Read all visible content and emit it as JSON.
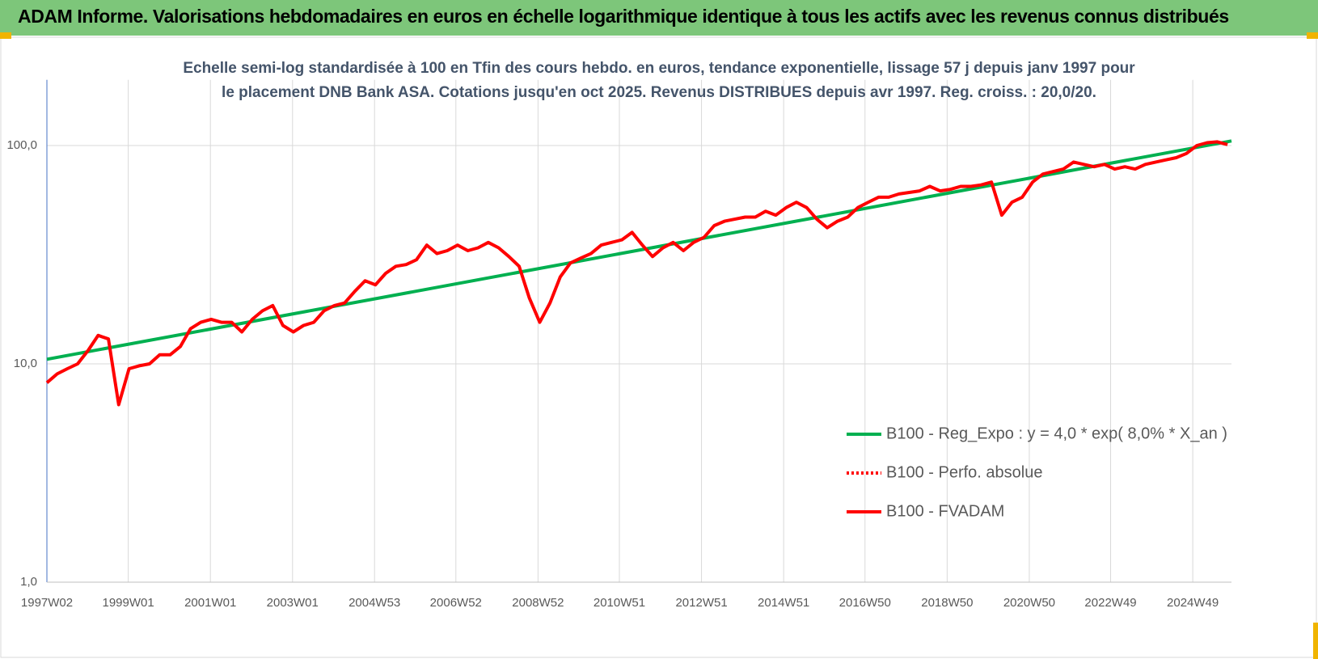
{
  "chart_data": {
    "type": "line",
    "title": "ADAM Informe. Valorisations hebdomadaires en euros en échelle logarithmique identique à tous les actifs avec les revenus connus distribués",
    "subtitle": "Echelle semi-log standardisée à 100 en Tfin des cours hebdo. en euros, tendance exponentielle, lissage 57 j depuis janv 1997 pour le placement DNB Bank ASA. Cotations jusqu'en oct 2025. Revenus DISTRIBUES depuis avr 1997. Reg. croiss. : 20,0/20.",
    "ylog": true,
    "ylim": [
      1,
      200
    ],
    "yticks": [
      {
        "value": 1,
        "label": "1,0"
      },
      {
        "value": 10,
        "label": "10,0"
      },
      {
        "value": 100,
        "label": "100,0"
      }
    ],
    "xlim": [
      "1997W02",
      "2025W46"
    ],
    "xticks": [
      "1997W02",
      "1999W01",
      "2001W01",
      "2003W01",
      "2004W53",
      "2006W52",
      "2008W52",
      "2010W51",
      "2012W51",
      "2014W51",
      "2016W50",
      "2018W50",
      "2020W50",
      "2022W49",
      "2024W49"
    ],
    "grid": true,
    "legend": "lower right",
    "series": [
      {
        "name": "B100 - Reg_Expo : y = 4,0 * exp( 8,0% *  X_an )",
        "color": "#00b050",
        "dash": "solid",
        "x": [
          "1997W02",
          "2025W46"
        ],
        "values": [
          10.5,
          105
        ]
      },
      {
        "name": "B100 - Perfo. absolue",
        "color": "#ff0000",
        "dash": "dotted"
      },
      {
        "name": "B100 - FVADAM",
        "color": "#ff0000",
        "dash": "solid",
        "x": [
          "1997W02",
          "1997W15",
          "1997W28",
          "1997W41",
          "1998W02",
          "1998W15",
          "1998W28",
          "1998W41",
          "1999W02",
          "1999W15",
          "1999W28",
          "1999W41",
          "2000W02",
          "2000W15",
          "2000W28",
          "2000W41",
          "2001W02",
          "2001W15",
          "2001W28",
          "2001W41",
          "2002W02",
          "2002W15",
          "2002W28",
          "2002W41",
          "2003W02",
          "2003W15",
          "2003W28",
          "2003W41",
          "2004W02",
          "2004W15",
          "2004W28",
          "2004W41",
          "2005W02",
          "2005W15",
          "2005W28",
          "2005W41",
          "2006W02",
          "2006W15",
          "2006W28",
          "2006W41",
          "2007W02",
          "2007W15",
          "2007W28",
          "2007W41",
          "2008W02",
          "2008W15",
          "2008W28",
          "2008W41",
          "2009W02",
          "2009W15",
          "2009W28",
          "2009W41",
          "2010W02",
          "2010W15",
          "2010W28",
          "2010W41",
          "2011W02",
          "2011W15",
          "2011W28",
          "2011W41",
          "2012W02",
          "2012W15",
          "2012W28",
          "2012W41",
          "2013W02",
          "2013W15",
          "2013W28",
          "2013W41",
          "2014W02",
          "2014W15",
          "2014W28",
          "2014W41",
          "2015W02",
          "2015W15",
          "2015W28",
          "2015W41",
          "2016W02",
          "2016W15",
          "2016W28",
          "2016W41",
          "2017W02",
          "2017W15",
          "2017W28",
          "2017W41",
          "2018W02",
          "2018W15",
          "2018W28",
          "2018W41",
          "2019W02",
          "2019W15",
          "2019W28",
          "2019W41",
          "2020W02",
          "2020W15",
          "2020W28",
          "2020W41",
          "2021W02",
          "2021W15",
          "2021W28",
          "2021W41",
          "2022W02",
          "2022W15",
          "2022W28",
          "2022W41",
          "2023W02",
          "2023W15",
          "2023W28",
          "2023W41",
          "2024W02",
          "2024W15",
          "2024W28",
          "2024W41",
          "2025W02",
          "2025W15",
          "2025W28",
          "2025W41"
        ],
        "values": [
          8.2,
          9.0,
          9.5,
          10.0,
          11.5,
          13.5,
          13.0,
          6.5,
          9.5,
          9.8,
          10.0,
          11.0,
          11.0,
          12.0,
          14.5,
          15.5,
          16.0,
          15.5,
          15.5,
          14.0,
          16.0,
          17.5,
          18.5,
          15.0,
          14.0,
          15.0,
          15.5,
          17.5,
          18.5,
          19.0,
          21.5,
          24.0,
          23.0,
          26.0,
          28.0,
          28.5,
          30.0,
          35.0,
          32.0,
          33.0,
          35.0,
          33.0,
          34.0,
          36.0,
          34.0,
          31.0,
          28.0,
          20.0,
          15.5,
          19.0,
          25.0,
          29.0,
          30.5,
          32.0,
          35.0,
          36.0,
          37.0,
          40.0,
          35.0,
          31.0,
          34.0,
          36.0,
          33.0,
          36.0,
          38,
          43,
          45,
          46,
          47,
          47,
          50,
          48,
          52,
          55,
          52,
          46,
          42,
          45,
          47,
          52,
          55,
          58,
          58,
          60,
          61,
          62,
          65,
          62,
          63,
          65,
          65,
          66,
          68,
          48,
          55,
          58,
          68,
          74,
          76,
          78,
          84,
          82,
          80,
          82,
          78,
          80,
          78,
          82,
          84,
          86,
          88,
          92,
          100,
          103,
          104,
          101
        ]
      }
    ]
  }
}
